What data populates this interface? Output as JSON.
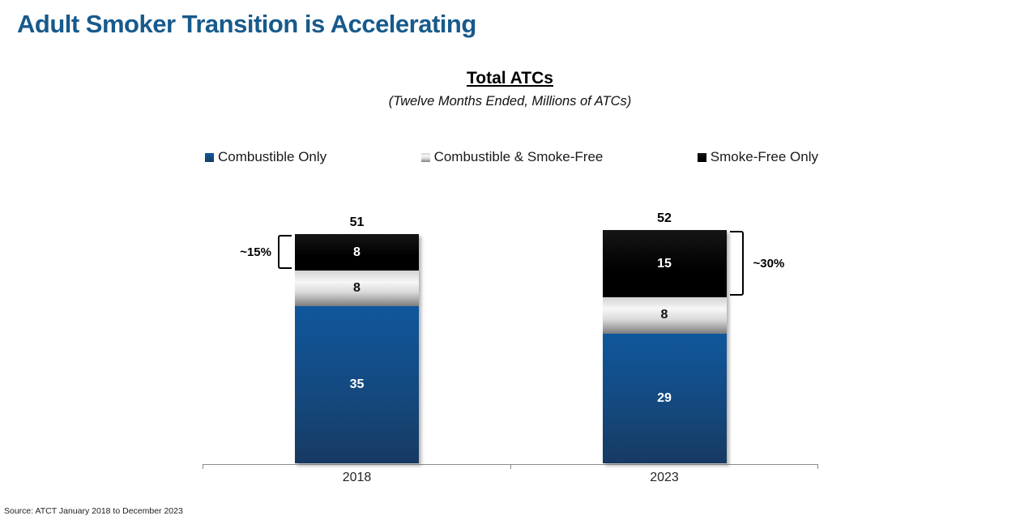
{
  "slide": {
    "title": "Adult Smoker Transition is Accelerating",
    "title_color": "#175a8c"
  },
  "source": "Source: ATCT January 2018 to December 2023",
  "chart_data": {
    "type": "bar",
    "stacked": true,
    "title": "Total ATCs",
    "subtitle": "(Twelve Months Ended, Millions of ATCs)",
    "legend_position": "top",
    "gridlines": false,
    "y_axis_visible": false,
    "categories": [
      "2018",
      "2023"
    ],
    "series": [
      {
        "name": "Combustible Only",
        "values": [
          35,
          29
        ],
        "label_color": "#ffffff",
        "gradient": [
          "#0f579c 0%",
          "#14497f 55%",
          "#163a62 100%"
        ]
      },
      {
        "name": "Combustible & Smoke-Free",
        "values": [
          8,
          8
        ],
        "label_color": "#111111",
        "gradient": [
          "#d2d2d2 0%",
          "#f7f7f7 32%",
          "#d8d8d8 62%",
          "#7d7d7d 100%"
        ]
      },
      {
        "name": "Smoke-Free Only",
        "values": [
          8,
          15
        ],
        "label_color": "#ffffff",
        "gradient": [
          "#161616 0%",
          "#000000 60%",
          "#000000 100%"
        ]
      }
    ],
    "totals": [
      51,
      52
    ],
    "annotations": [
      {
        "label": "~15%",
        "category": "2018",
        "series": "Smoke-Free Only",
        "side": "left"
      },
      {
        "label": "~30%",
        "category": "2023",
        "series": "Smoke-Free Only",
        "side": "right"
      }
    ]
  }
}
